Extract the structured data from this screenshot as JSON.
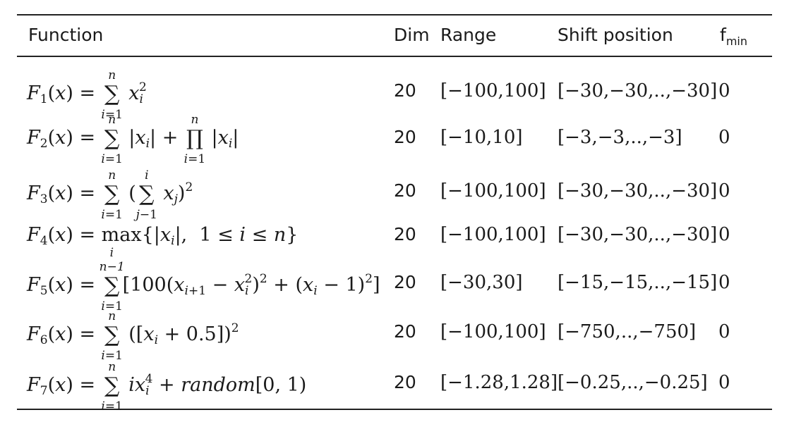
{
  "table": {
    "headers": {
      "function": "Function",
      "dim": "Dim",
      "range": "Range",
      "shift": "Shift position",
      "fmin_base": "f",
      "fmin_sub": "min"
    },
    "rows": [
      {
        "name": "F1",
        "dim": "20",
        "range": "[−100,100]",
        "shift": "[−30,−30,..,−30]",
        "fmin": "0"
      },
      {
        "name": "F2",
        "dim": "20",
        "range": "[−10,10]",
        "shift": "[−3,−3,..,−3]",
        "fmin": "0"
      },
      {
        "name": "F3",
        "dim": "20",
        "range": "[−100,100]",
        "shift": "[−30,−30,..,−30]",
        "fmin": "0"
      },
      {
        "name": "F4",
        "dim": "20",
        "range": "[−100,100]",
        "shift": "[−30,−30,..,−30]",
        "fmin": "0"
      },
      {
        "name": "F5",
        "dim": "20",
        "range": "[−30,30]",
        "shift": "[−15,−15,..,−15]",
        "fmin": "0"
      },
      {
        "name": "F6",
        "dim": "20",
        "range": "[−100,100]",
        "shift": "[−750,..,−750]",
        "fmin": "0"
      },
      {
        "name": "F7",
        "dim": "20",
        "range": "[−1.28,1.28]",
        "shift": "[−0.25,..,−0.25]",
        "fmin": "0"
      }
    ]
  }
}
